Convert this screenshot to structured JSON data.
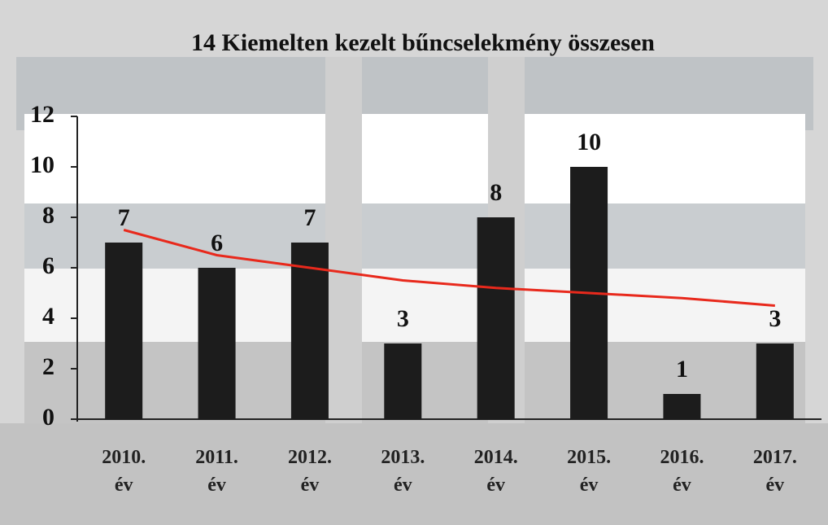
{
  "chart_data": {
    "type": "bar",
    "title": "14 Kiemelten kezelt bűncselekmény összesen",
    "categories": [
      "2010. év",
      "2011. év",
      "2012. év",
      "2013. év",
      "2014. év",
      "2015. év",
      "2016. év",
      "2017. év"
    ],
    "values": [
      7,
      6,
      7,
      3,
      8,
      10,
      1,
      3
    ],
    "color": "#1c1c1c",
    "trendline": {
      "color": "#e8291c",
      "values": [
        7.5,
        6.5,
        6.0,
        5.5,
        5.2,
        5.0,
        4.8,
        4.5
      ]
    },
    "ylim": [
      0,
      12
    ],
    "yticks": [
      0,
      2,
      4,
      6,
      8,
      10,
      12
    ],
    "grid": false
  }
}
